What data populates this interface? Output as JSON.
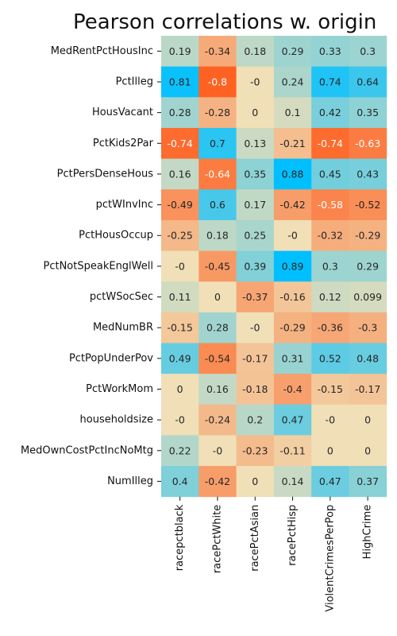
{
  "chart_data": {
    "type": "heatmap",
    "title": "Pearson correlations w. origin",
    "rows": [
      "MedRentPctHousInc",
      "PctIlleg",
      "HousVacant",
      "PctKids2Par",
      "PctPersDenseHous",
      "pctWInvInc",
      "PctHousOccup",
      "PctNotSpeakEnglWell",
      "pctWSocSec",
      "MedNumBR",
      "PctPopUnderPov",
      "PctWorkMom",
      "householdsize",
      "MedOwnCostPctIncNoMtg",
      "NumIlleg"
    ],
    "columns": [
      "racepctblack",
      "racePctWhite",
      "racePctAsian",
      "racePctHisp",
      "ViolentCrimesPerPop",
      "HighCrime"
    ],
    "values": [
      [
        0.19,
        -0.34,
        0.18,
        0.29,
        0.33,
        0.3
      ],
      [
        0.81,
        -0.8,
        -0.0,
        0.24,
        0.74,
        0.64
      ],
      [
        0.28,
        -0.28,
        0,
        0.1,
        0.42,
        0.35
      ],
      [
        -0.74,
        0.7,
        0.13,
        -0.21,
        -0.74,
        -0.63
      ],
      [
        0.16,
        -0.64,
        0.35,
        0.88,
        0.45,
        0.43
      ],
      [
        -0.49,
        0.6,
        0.17,
        -0.42,
        -0.58,
        -0.52
      ],
      [
        -0.25,
        0.18,
        0.25,
        -0.0,
        -0.32,
        -0.29
      ],
      [
        -0.0,
        -0.45,
        0.39,
        0.89,
        0.3,
        0.29
      ],
      [
        0.11,
        0,
        -0.37,
        -0.16,
        0.12,
        0.099
      ],
      [
        -0.15,
        0.28,
        -0.0,
        -0.29,
        -0.36,
        -0.3
      ],
      [
        0.49,
        -0.54,
        -0.17,
        0.31,
        0.52,
        0.48
      ],
      [
        0,
        0.16,
        -0.18,
        -0.4,
        -0.15,
        -0.17
      ],
      [
        -0.0,
        -0.24,
        0.2,
        0.47,
        -0.0,
        0
      ],
      [
        0.22,
        -0.0,
        -0.23,
        -0.11,
        0,
        0
      ],
      [
        0.4,
        -0.42,
        0,
        0.14,
        0.47,
        0.37
      ]
    ],
    "labels": [
      [
        "0.19",
        "-0.34",
        "0.18",
        "0.29",
        "0.33",
        "0.3"
      ],
      [
        "0.81",
        "-0.8",
        "-0",
        "0.24",
        "0.74",
        "0.64"
      ],
      [
        "0.28",
        "-0.28",
        "0",
        "0.1",
        "0.42",
        "0.35"
      ],
      [
        "-0.74",
        "0.7",
        "0.13",
        "-0.21",
        "-0.74",
        "-0.63"
      ],
      [
        "0.16",
        "-0.64",
        "0.35",
        "0.88",
        "0.45",
        "0.43"
      ],
      [
        "-0.49",
        "0.6",
        "0.17",
        "-0.42",
        "-0.58",
        "-0.52"
      ],
      [
        "-0.25",
        "0.18",
        "0.25",
        "-0",
        "-0.32",
        "-0.29"
      ],
      [
        "-0",
        "-0.45",
        "0.39",
        "0.89",
        "0.3",
        "0.29"
      ],
      [
        "0.11",
        "0",
        "-0.37",
        "-0.16",
        "0.12",
        "0.099"
      ],
      [
        "-0.15",
        "0.28",
        "-0",
        "-0.29",
        "-0.36",
        "-0.3"
      ],
      [
        "0.49",
        "-0.54",
        "-0.17",
        "0.31",
        "0.52",
        "0.48"
      ],
      [
        "0",
        "0.16",
        "-0.18",
        "-0.4",
        "-0.15",
        "-0.17"
      ],
      [
        "-0",
        "-0.24",
        "0.2",
        "0.47",
        "-0",
        "0"
      ],
      [
        "0.22",
        "-0",
        "-0.23",
        "-0.11",
        "0",
        "0"
      ],
      [
        "0.4",
        "-0.42",
        "0",
        "0.14",
        "0.47",
        "0.37"
      ]
    ],
    "colorscale": {
      "min": -0.85,
      "max": 0.85,
      "negative_color": "#ff5a1a",
      "neutral_color": "#f0dfb7",
      "positive_color": "#00bfff"
    },
    "colorbar": false,
    "grid": false
  }
}
